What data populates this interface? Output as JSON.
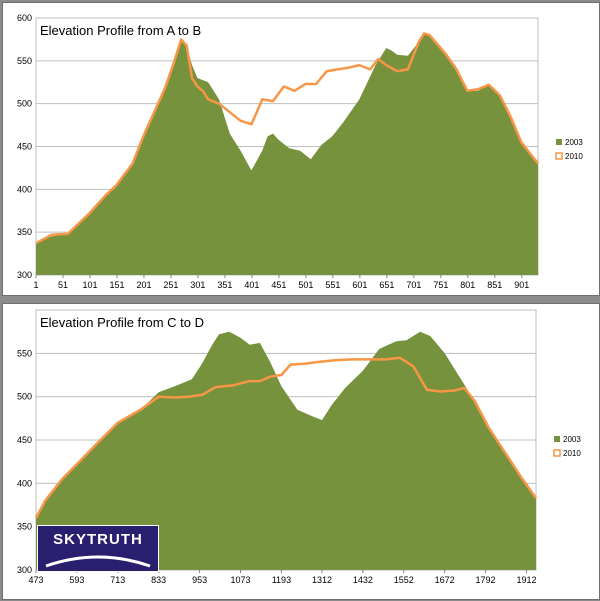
{
  "chart_data": [
    {
      "type": "area",
      "title": "Elevation Profile from A to B",
      "xlabel": "",
      "ylabel": "",
      "ylim": [
        300,
        600
      ],
      "yticks": [
        300,
        350,
        400,
        450,
        500,
        550,
        600
      ],
      "xlim": [
        1,
        931
      ],
      "xticks": [
        1,
        51,
        101,
        151,
        201,
        251,
        301,
        351,
        401,
        451,
        501,
        551,
        601,
        651,
        701,
        751,
        801,
        851,
        901
      ],
      "grid": true,
      "legend_position": "right",
      "series": [
        {
          "name": "2003",
          "style": "area",
          "color": "#76923c",
          "x": [
            1,
            30,
            60,
            80,
            100,
            130,
            150,
            180,
            200,
            220,
            240,
            255,
            270,
            280,
            290,
            300,
            320,
            340,
            360,
            380,
            400,
            420,
            430,
            440,
            450,
            470,
            490,
            510,
            530,
            550,
            570,
            600,
            630,
            650,
            660,
            670,
            690,
            710,
            720,
            730,
            760,
            780,
            800,
            820,
            840,
            860,
            880,
            900,
            931
          ],
          "y": [
            337,
            345,
            348,
            360,
            370,
            392,
            403,
            430,
            460,
            490,
            518,
            545,
            575,
            568,
            545,
            530,
            525,
            505,
            465,
            445,
            422,
            445,
            462,
            465,
            458,
            448,
            445,
            435,
            452,
            462,
            478,
            505,
            545,
            565,
            562,
            557,
            556,
            572,
            582,
            580,
            558,
            540,
            515,
            515,
            522,
            510,
            485,
            455,
            430
          ]
        },
        {
          "name": "2010",
          "style": "line",
          "color": "#f79646",
          "x": [
            1,
            30,
            60,
            80,
            100,
            130,
            150,
            180,
            200,
            220,
            240,
            255,
            270,
            280,
            290,
            300,
            310,
            320,
            340,
            360,
            380,
            400,
            410,
            420,
            440,
            460,
            480,
            500,
            520,
            540,
            560,
            580,
            600,
            620,
            635,
            650,
            670,
            690,
            710,
            720,
            730,
            760,
            780,
            800,
            820,
            840,
            860,
            880,
            900,
            931
          ],
          "y": [
            337,
            347,
            348,
            360,
            372,
            393,
            405,
            430,
            462,
            490,
            518,
            545,
            575,
            568,
            530,
            520,
            515,
            505,
            500,
            490,
            480,
            476,
            490,
            505,
            503,
            520,
            515,
            523,
            523,
            538,
            540,
            542,
            545,
            540,
            552,
            545,
            538,
            540,
            572,
            582,
            580,
            558,
            540,
            515,
            517,
            522,
            510,
            485,
            455,
            430
          ]
        }
      ]
    },
    {
      "type": "area",
      "title": "Elevation Profile from C to D",
      "xlabel": "",
      "ylabel": "",
      "ylim": [
        300,
        600
      ],
      "yticks": [
        300,
        350,
        400,
        450,
        500,
        550
      ],
      "xlim": [
        473,
        1940
      ],
      "xticks": [
        473,
        593,
        713,
        833,
        953,
        1073,
        1193,
        1312,
        1432,
        1552,
        1672,
        1792,
        1912
      ],
      "grid": true,
      "legend_position": "right",
      "series": [
        {
          "name": "2003",
          "style": "area",
          "color": "#76923c",
          "x": [
            473,
            500,
            550,
            600,
            650,
            713,
            780,
            833,
            880,
            930,
            960,
            990,
            1010,
            1040,
            1073,
            1100,
            1130,
            1160,
            1193,
            1240,
            1280,
            1312,
            1340,
            1380,
            1432,
            1480,
            1530,
            1560,
            1600,
            1630,
            1672,
            1720,
            1760,
            1800,
            1850,
            1900,
            1940
          ],
          "y": [
            360,
            380,
            405,
            425,
            445,
            470,
            485,
            505,
            512,
            520,
            538,
            560,
            572,
            575,
            568,
            560,
            562,
            540,
            512,
            485,
            478,
            473,
            490,
            510,
            530,
            555,
            564,
            565,
            575,
            570,
            550,
            520,
            495,
            465,
            435,
            405,
            383
          ]
        },
        {
          "name": "2010",
          "style": "line",
          "color": "#f79646",
          "x": [
            473,
            500,
            550,
            600,
            650,
            713,
            780,
            833,
            880,
            920,
            960,
            1000,
            1050,
            1100,
            1130,
            1160,
            1193,
            1220,
            1260,
            1300,
            1350,
            1400,
            1450,
            1500,
            1540,
            1580,
            1620,
            1660,
            1700,
            1730,
            1760,
            1800,
            1850,
            1900,
            1940
          ],
          "y": [
            360,
            380,
            405,
            425,
            445,
            470,
            485,
            500,
            499,
            500,
            502,
            511,
            513,
            518,
            518,
            523,
            525,
            537,
            538,
            540,
            542,
            543,
            543,
            543,
            545,
            535,
            508,
            506,
            507,
            510,
            495,
            465,
            435,
            405,
            383
          ]
        }
      ]
    }
  ],
  "logo_text": "SKYTRUTH"
}
